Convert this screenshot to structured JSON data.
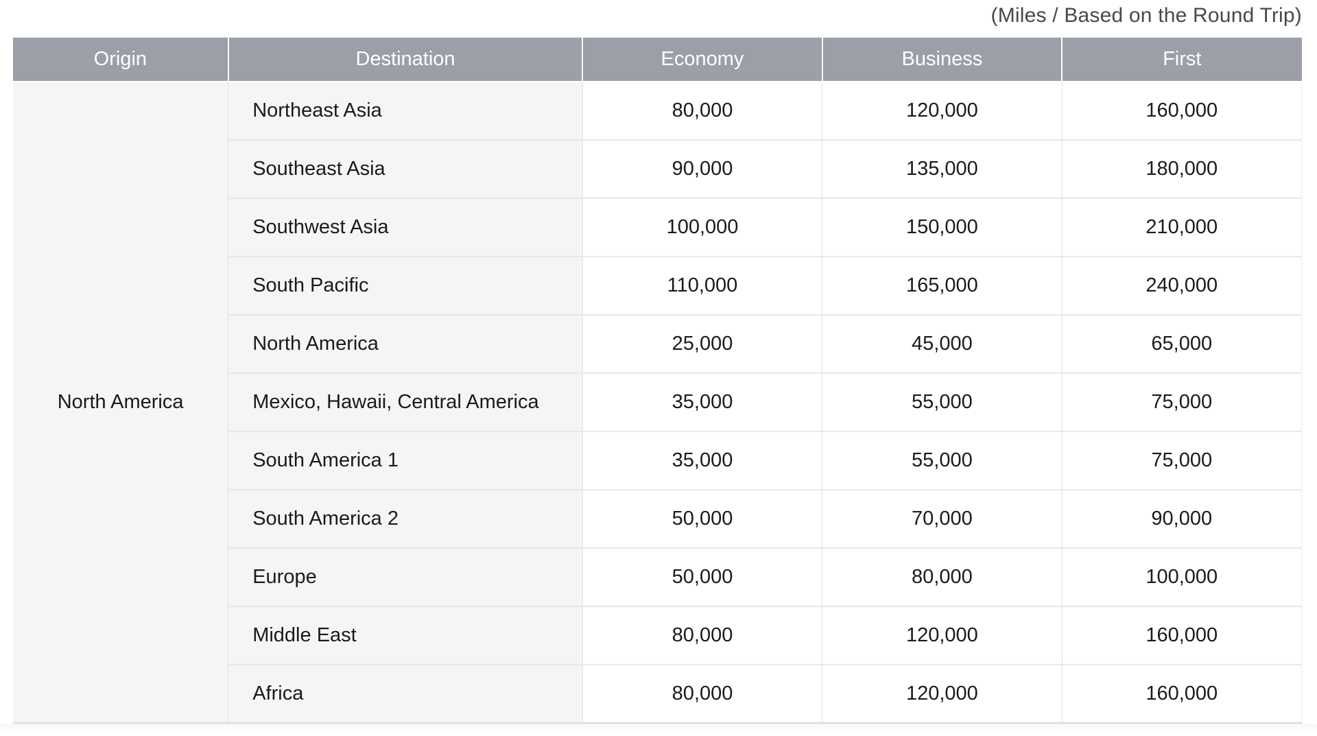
{
  "caption": "(Miles / Based on the Round Trip)",
  "columns": {
    "origin": "Origin",
    "destination": "Destination",
    "economy": "Economy",
    "business": "Business",
    "first": "First"
  },
  "origin_region": "North America",
  "rows": [
    {
      "destination": "Northeast Asia",
      "economy": "80,000",
      "business": "120,000",
      "first": "160,000"
    },
    {
      "destination": "Southeast Asia",
      "economy": "90,000",
      "business": "135,000",
      "first": "180,000"
    },
    {
      "destination": "Southwest Asia",
      "economy": "100,000",
      "business": "150,000",
      "first": "210,000"
    },
    {
      "destination": "South Pacific",
      "economy": "110,000",
      "business": "165,000",
      "first": "240,000"
    },
    {
      "destination": "North America",
      "economy": "25,000",
      "business": "45,000",
      "first": "65,000"
    },
    {
      "destination": "Mexico, Hawaii, Central America",
      "economy": "35,000",
      "business": "55,000",
      "first": "75,000"
    },
    {
      "destination": "South America 1",
      "economy": "35,000",
      "business": "55,000",
      "first": "75,000"
    },
    {
      "destination": "South America 2",
      "economy": "50,000",
      "business": "70,000",
      "first": "90,000"
    },
    {
      "destination": "Europe",
      "economy": "50,000",
      "business": "80,000",
      "first": "100,000"
    },
    {
      "destination": "Middle East",
      "economy": "80,000",
      "business": "120,000",
      "first": "160,000"
    },
    {
      "destination": "Africa",
      "economy": "80,000",
      "business": "120,000",
      "first": "160,000"
    }
  ],
  "colors": {
    "header_bg": "#9c9fa7",
    "header_text": "#ffffff",
    "shaded_cell_bg": "#f5f5f6",
    "numeric_cell_bg": "#ffffff",
    "row_border": "#e8e8ea",
    "column_border": "#e0e1e4",
    "table_bottom_border": "#d8d9db",
    "body_text": "#191a1c",
    "caption_text": "#46484e"
  }
}
